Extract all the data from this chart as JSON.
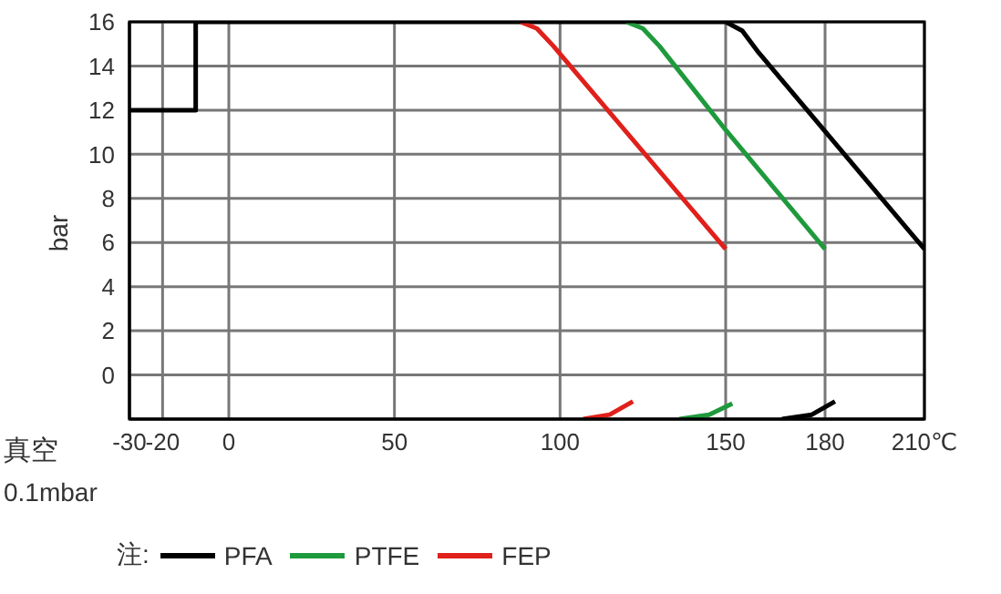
{
  "chart_data": {
    "type": "line",
    "ylabel": "bar",
    "legend_title": "注:",
    "annotations": [
      "真空",
      "0.1mbar"
    ],
    "xlim": [
      -30,
      210
    ],
    "xticks": [
      -30,
      -20,
      0,
      50,
      100,
      150,
      180,
      {
        "value": 210,
        "label": "210℃"
      }
    ],
    "ylim": [
      -2,
      16
    ],
    "yticks": [
      0,
      2,
      4,
      6,
      8,
      10,
      12,
      14,
      16
    ],
    "grid": true,
    "legend": "bottom",
    "marker": "none",
    "line_style": "solid",
    "series": [
      {
        "name": "PFA",
        "color": "#000000",
        "x": [
          -30,
          -10,
          -10,
          150,
          155,
          160,
          210,
          null,
          167,
          176,
          183
        ],
        "values": [
          12,
          12,
          16,
          16,
          15.6,
          14.6,
          5.7,
          null,
          -2,
          -1.8,
          -1.2
        ]
      },
      {
        "name": "PTFE",
        "color": "#1e9a3c",
        "x": [
          120,
          125,
          130,
          150,
          180,
          null,
          136,
          145,
          152
        ],
        "values": [
          16,
          15.7,
          14.9,
          11.1,
          5.7,
          null,
          -2,
          -1.8,
          -1.3
        ]
      },
      {
        "name": "FEP",
        "color": "#e0201b",
        "x": [
          88,
          93,
          98,
          150,
          null,
          107,
          115,
          122
        ],
        "values": [
          16,
          15.7,
          14.9,
          5.7,
          null,
          -2,
          -1.8,
          -1.2
        ]
      }
    ]
  }
}
